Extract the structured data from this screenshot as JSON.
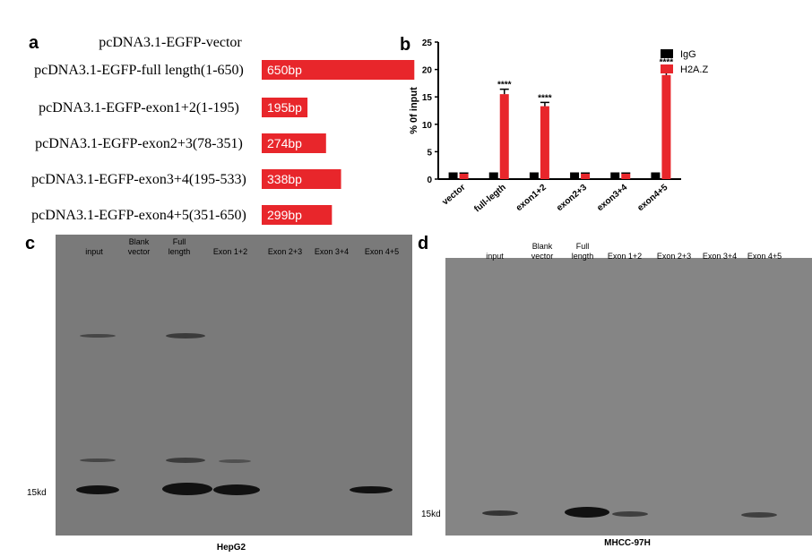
{
  "panel_a": {
    "letter": "a",
    "vector": "pcDNA3.1-EGFP-vector",
    "constructs": [
      {
        "name": "pcDNA3.1-EGFP-full length(1-650)",
        "length": 650,
        "label": "650bp"
      },
      {
        "name": "pcDNA3.1-EGFP-exon1+2(1-195)",
        "length": 195,
        "label": "195bp"
      },
      {
        "name": "pcDNA3.1-EGFP-exon2+3(78-351)",
        "length": 274,
        "label": "274bp"
      },
      {
        "name": "pcDNA3.1-EGFP-exon3+4(195-533)",
        "length": 338,
        "label": "338bp"
      },
      {
        "name": "pcDNA3.1-EGFP-exon4+5(351-650)",
        "length": 299,
        "label": "299bp"
      }
    ]
  },
  "chart_data": {
    "type": "bar",
    "letter": "b",
    "y_label": "% 0f input",
    "categories": [
      "vector",
      "full-legth",
      "exon1+2",
      "exon2+3",
      "exon3+4",
      "exon4+5"
    ],
    "series": [
      {
        "name": "IgG",
        "color": "#000000",
        "values": [
          1,
          1,
          1,
          1,
          1,
          1
        ],
        "errors": [
          0.1,
          0.1,
          0.1,
          0.1,
          0.1,
          0.1
        ]
      },
      {
        "name": "H2A.Z",
        "color": "#e8262b",
        "values": [
          1,
          15.5,
          13.3,
          1,
          1,
          19
        ],
        "errors": [
          0.1,
          0.9,
          0.7,
          0.1,
          0.1,
          1.5
        ],
        "significance": [
          null,
          "****",
          "****",
          null,
          null,
          "****"
        ]
      }
    ],
    "ylim": [
      0,
      25
    ],
    "yticks": [
      0,
      5,
      10,
      15,
      20,
      25
    ],
    "legend": "top-right"
  },
  "panel_c": {
    "letter": "c",
    "lanes": [
      [
        "input"
      ],
      [
        "Blank",
        "vector"
      ],
      [
        "Full",
        "length"
      ],
      [
        "Exon 1+2"
      ],
      [
        "Exon 2+3"
      ],
      [
        "Exon 3+4"
      ],
      [
        "Exon 4+5"
      ]
    ],
    "marker": "15kd",
    "cell_line": "HepG2"
  },
  "panel_d": {
    "letter": "d",
    "lanes": [
      [
        "input"
      ],
      [
        "Blank",
        "vector"
      ],
      [
        "Full",
        "length"
      ],
      [
        "Exon 1+2"
      ],
      [
        "Exon 2+3"
      ],
      [
        "Exon 3+4"
      ],
      [
        "Exon 4+5"
      ]
    ],
    "marker": "15kd",
    "cell_line": "MHCC-97H"
  }
}
